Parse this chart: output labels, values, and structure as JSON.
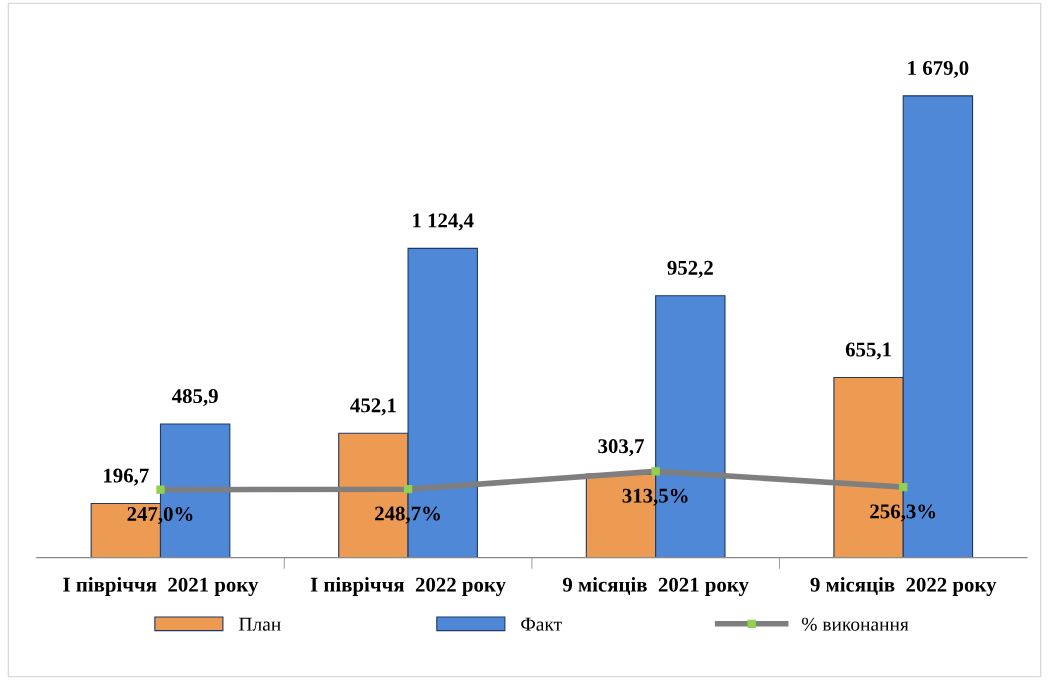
{
  "chart_data": {
    "type": "bar",
    "categories": [
      "I півріччя  2021 року",
      "I півріччя  2022 року",
      "9 місяців  2021 року",
      "9 місяців  2022 року"
    ],
    "series": [
      {
        "name": "План",
        "color": "#ed9a52",
        "values": [
          196.7,
          452.1,
          303.7,
          655.1
        ],
        "value_labels": [
          "196,7",
          "452,1",
          "303,7",
          "655,1"
        ]
      },
      {
        "name": "Факт",
        "color": "#4f88d6",
        "values": [
          485.9,
          1124.4,
          952.2,
          1679.0
        ],
        "value_labels": [
          "485,9",
          "1 124,4",
          "952,2",
          "1 679,0"
        ]
      },
      {
        "name": "% виконання",
        "type": "line",
        "color": "#7f7f7f",
        "marker": "square",
        "values": [
          247.0,
          248.7,
          313.5,
          256.3
        ],
        "value_labels": [
          "247,0%",
          "248,7%",
          "313,5%",
          "256,3%"
        ]
      }
    ],
    "legend": "bottom",
    "grid": false,
    "tick_labels": "x"
  }
}
